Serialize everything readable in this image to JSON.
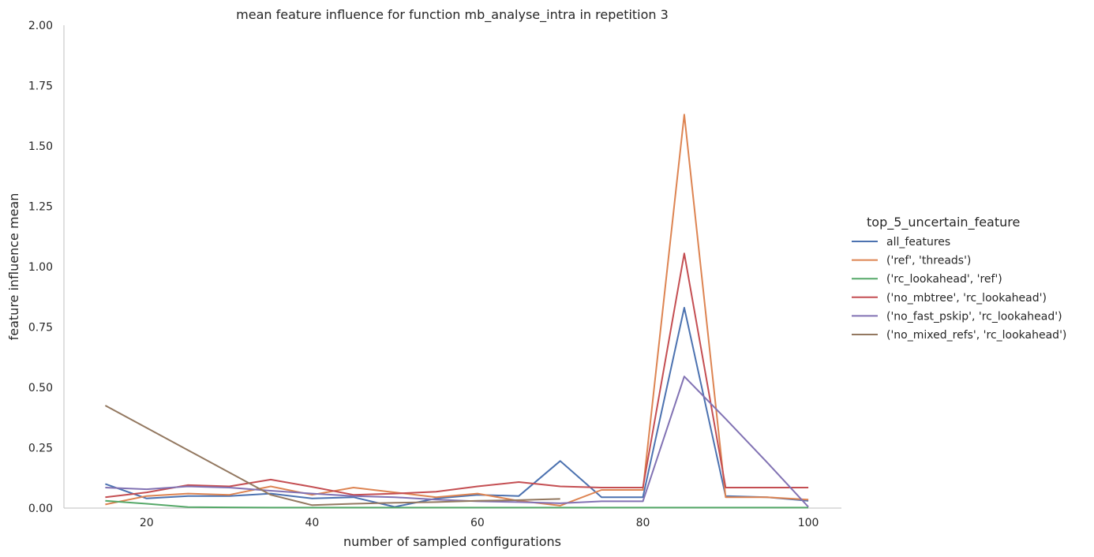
{
  "chart_data": {
    "type": "line",
    "title": "mean feature influence for function mb_analyse_intra in repetition 3",
    "xlabel": "number of sampled configurations",
    "ylabel": "feature influence mean",
    "xlim": [
      10,
      104
    ],
    "ylim": [
      0,
      2.0
    ],
    "xticks": [
      20,
      40,
      60,
      80,
      100
    ],
    "yticks": [
      "0.00",
      "0.25",
      "0.50",
      "0.75",
      "1.00",
      "1.25",
      "1.50",
      "1.75",
      "2.00"
    ],
    "grid": false,
    "legend_title": "top_5_uncertain_feature",
    "legend_position": "right",
    "series": [
      {
        "name": "all_features",
        "color": "#4c72b0",
        "points": [
          [
            15,
            0.1
          ],
          [
            20,
            0.04
          ],
          [
            25,
            0.05
          ],
          [
            30,
            0.05
          ],
          [
            35,
            0.06
          ],
          [
            40,
            0.04
          ],
          [
            45,
            0.045
          ],
          [
            50,
            0.005
          ],
          [
            55,
            0.04
          ],
          [
            60,
            0.055
          ],
          [
            65,
            0.05
          ],
          [
            70,
            0.195
          ],
          [
            75,
            0.045
          ],
          [
            80,
            0.045
          ],
          [
            85,
            0.83
          ],
          [
            90,
            0.05
          ],
          [
            95,
            0.045
          ],
          [
            100,
            0.03
          ]
        ]
      },
      {
        "name": "('ref', 'threads')",
        "color": "#dd8452",
        "points": [
          [
            15,
            0.015
          ],
          [
            20,
            0.05
          ],
          [
            25,
            0.06
          ],
          [
            30,
            0.055
          ],
          [
            35,
            0.09
          ],
          [
            40,
            0.055
          ],
          [
            45,
            0.085
          ],
          [
            50,
            0.065
          ],
          [
            55,
            0.045
          ],
          [
            60,
            0.06
          ],
          [
            65,
            0.03
          ],
          [
            70,
            0.01
          ],
          [
            75,
            0.075
          ],
          [
            80,
            0.075
          ],
          [
            85,
            1.63
          ],
          [
            90,
            0.045
          ],
          [
            95,
            0.045
          ],
          [
            100,
            0.035
          ]
        ]
      },
      {
        "name": "('rc_lookahead', 'ref')",
        "color": "#55a868",
        "points": [
          [
            15,
            0.03
          ],
          [
            20,
            0.018
          ],
          [
            25,
            0.004
          ],
          [
            30,
            0.003
          ],
          [
            35,
            0.002
          ],
          [
            40,
            0.002
          ],
          [
            45,
            0.002
          ],
          [
            50,
            0.002
          ],
          [
            55,
            0.002
          ],
          [
            60,
            0.002
          ],
          [
            65,
            0.002
          ],
          [
            70,
            0.002
          ],
          [
            75,
            0.002
          ],
          [
            80,
            0.002
          ],
          [
            85,
            0.002
          ],
          [
            90,
            0.002
          ],
          [
            95,
            0.002
          ],
          [
            100,
            0.002
          ]
        ]
      },
      {
        "name": "('no_mbtree', 'rc_lookahead')",
        "color": "#c44e52",
        "points": [
          [
            15,
            0.045
          ],
          [
            20,
            0.065
          ],
          [
            25,
            0.095
          ],
          [
            30,
            0.09
          ],
          [
            35,
            0.118
          ],
          [
            40,
            0.088
          ],
          [
            45,
            0.055
          ],
          [
            50,
            0.06
          ],
          [
            55,
            0.068
          ],
          [
            60,
            0.09
          ],
          [
            65,
            0.108
          ],
          [
            70,
            0.09
          ],
          [
            75,
            0.085
          ],
          [
            80,
            0.085
          ],
          [
            85,
            1.055
          ],
          [
            90,
            0.085
          ],
          [
            95,
            0.085
          ],
          [
            100,
            0.085
          ]
        ]
      },
      {
        "name": "('no_fast_pskip', 'rc_lookahead')",
        "color": "#8172b3",
        "points": [
          [
            15,
            0.085
          ],
          [
            20,
            0.078
          ],
          [
            25,
            0.09
          ],
          [
            30,
            0.085
          ],
          [
            35,
            0.072
          ],
          [
            40,
            0.06
          ],
          [
            45,
            0.05
          ],
          [
            50,
            0.045
          ],
          [
            55,
            0.035
          ],
          [
            60,
            0.028
          ],
          [
            65,
            0.025
          ],
          [
            70,
            0.02
          ],
          [
            75,
            0.028
          ],
          [
            80,
            0.028
          ],
          [
            85,
            0.545
          ],
          [
            90,
            0.37
          ],
          [
            95,
            0.19
          ],
          [
            100,
            0.005
          ]
        ]
      },
      {
        "name": "('no_mixed_refs', 'rc_lookahead')",
        "color": "#937860",
        "points": [
          [
            15,
            0.425
          ],
          [
            25,
            0.24
          ],
          [
            35,
            0.055
          ],
          [
            40,
            0.012
          ],
          [
            45,
            0.018
          ],
          [
            50,
            0.022
          ],
          [
            55,
            0.025
          ],
          [
            60,
            0.03
          ],
          [
            65,
            0.033
          ],
          [
            70,
            0.038
          ]
        ]
      }
    ]
  }
}
